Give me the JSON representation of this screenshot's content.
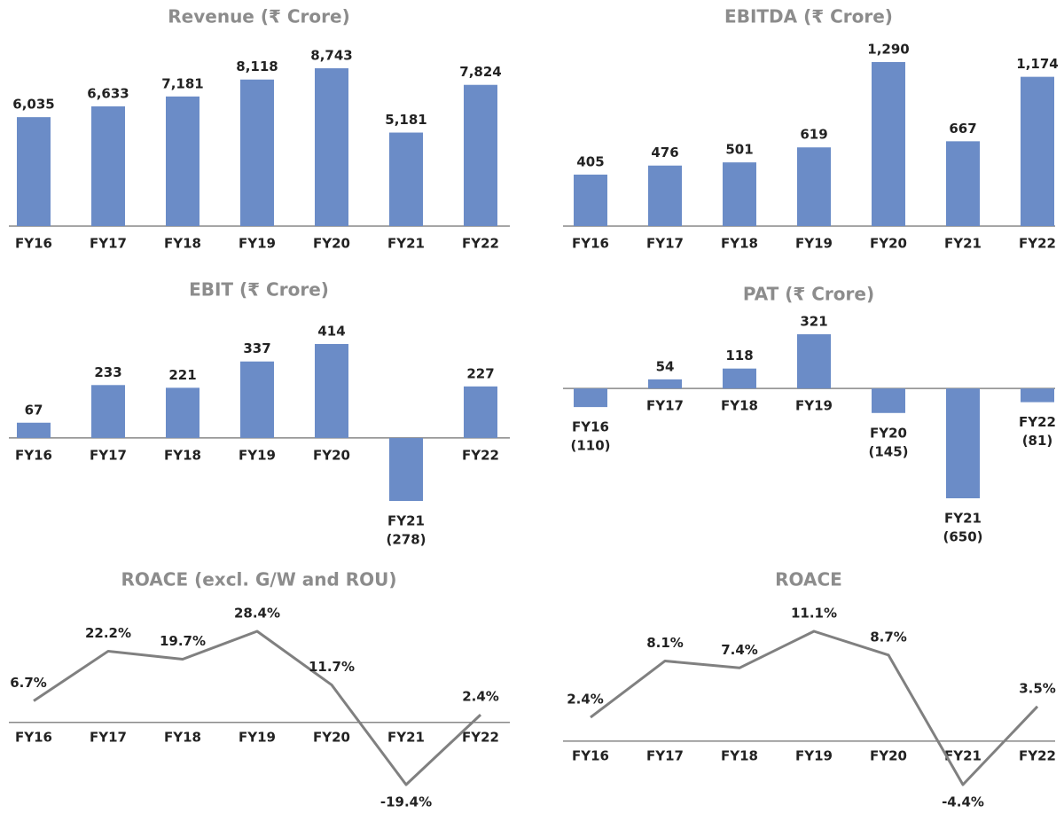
{
  "chart_data": [
    {
      "type": "bar",
      "title": "Revenue (₹ Crore)",
      "categories": [
        "FY16",
        "FY17",
        "FY18",
        "FY19",
        "FY20",
        "FY21",
        "FY22"
      ],
      "values": [
        6035,
        6633,
        7181,
        8118,
        8743,
        5181,
        7824
      ],
      "value_labels": [
        "6,035",
        "6,633",
        "7,181",
        "8,118",
        "8,743",
        "5,181",
        "7,824"
      ],
      "color": "#6b8cc7"
    },
    {
      "type": "bar",
      "title": "EBITDA (₹ Crore)",
      "categories": [
        "FY16",
        "FY17",
        "FY18",
        "FY19",
        "FY20",
        "FY21",
        "FY22"
      ],
      "values": [
        405,
        476,
        501,
        619,
        1290,
        667,
        1174
      ],
      "value_labels": [
        "405",
        "476",
        "501",
        "619",
        "1,290",
        "667",
        "1,174"
      ],
      "color": "#6b8cc7"
    },
    {
      "type": "bar",
      "title": "EBIT (₹ Crore)",
      "categories": [
        "FY16",
        "FY17",
        "FY18",
        "FY19",
        "FY20",
        "FY21",
        "FY22"
      ],
      "values": [
        67,
        233,
        221,
        337,
        414,
        -278,
        227
      ],
      "value_labels": [
        "67",
        "233",
        "221",
        "337",
        "414",
        "(278)",
        "227"
      ],
      "color": "#6b8cc7"
    },
    {
      "type": "bar",
      "title": "PAT (₹ Crore)",
      "categories": [
        "FY16",
        "FY17",
        "FY18",
        "FY19",
        "FY20",
        "FY21",
        "FY22"
      ],
      "values": [
        -110,
        54,
        118,
        321,
        -145,
        -650,
        -81
      ],
      "value_labels": [
        "(110)",
        "54",
        "118",
        "321",
        "(145)",
        "(650)",
        "(81)"
      ],
      "color": "#6b8cc7"
    },
    {
      "type": "line",
      "title": "ROACE (excl. G/W and ROU)",
      "categories": [
        "FY16",
        "FY17",
        "FY18",
        "FY19",
        "FY20",
        "FY21",
        "FY22"
      ],
      "values": [
        6.7,
        22.2,
        19.7,
        28.4,
        11.7,
        -19.4,
        2.4
      ],
      "value_labels": [
        "6.7%",
        "22.2%",
        "19.7%",
        "28.4%",
        "11.7%",
        "-19.4%",
        "2.4%"
      ],
      "color": "#808080"
    },
    {
      "type": "line",
      "title": "ROACE",
      "categories": [
        "FY16",
        "FY17",
        "FY18",
        "FY19",
        "FY20",
        "FY21",
        "FY22"
      ],
      "values": [
        2.4,
        8.1,
        7.4,
        11.1,
        8.7,
        -4.4,
        3.5
      ],
      "value_labels": [
        "2.4%",
        "8.1%",
        "7.4%",
        "11.1%",
        "8.7%",
        "-4.4%",
        "3.5%"
      ],
      "color": "#808080"
    }
  ]
}
